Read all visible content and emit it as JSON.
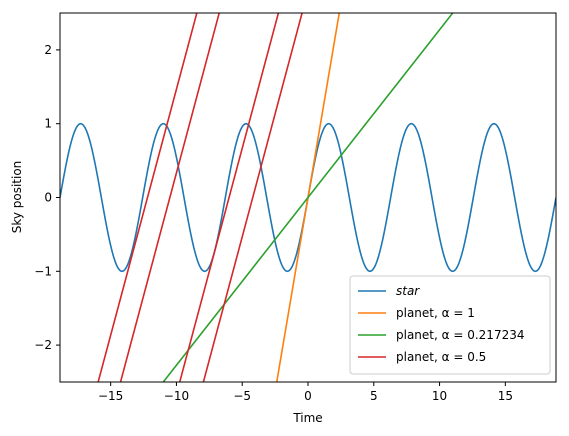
{
  "chart_data": {
    "type": "line",
    "title": "",
    "xlabel": "Time",
    "ylabel": "Sky position",
    "xlim": [
      -18.85,
      18.85
    ],
    "ylim": [
      -2.5,
      2.5
    ],
    "xticks": [
      -15,
      -10,
      -5,
      0,
      5,
      10,
      15
    ],
    "yticks": [
      -2,
      -1,
      0,
      1,
      2
    ],
    "xtick_labels": [
      "−15",
      "−10",
      "−5",
      "0",
      "5",
      "10",
      "15"
    ],
    "ytick_labels": [
      "−2",
      "−1",
      "0",
      "1",
      "2"
    ],
    "grid": false,
    "legend_position": "lower-right",
    "series": [
      {
        "name": "star",
        "kind": "sine",
        "amplitude": 1,
        "x_range": [
          -18.85,
          18.85
        ],
        "color": "#1f77b4"
      },
      {
        "name": "planet, α = 1",
        "kind": "lines",
        "slope": 1,
        "segments": [
          [
            -2.5,
            2.5
          ]
        ],
        "color": "#ff7f0e"
      },
      {
        "name": "planet, α = 0.217234",
        "kind": "lines",
        "slope": 0.217234,
        "segments": [
          [
            -2.5,
            2.5
          ]
        ],
        "color": "#2ca02c"
      },
      {
        "name": "planet, α = 0.5",
        "kind": "lines",
        "slope": 0.5,
        "segments": [
          [
            -3.1416,
            2.5
          ],
          [
            -3.1416,
            2.5
          ],
          [
            -2.5,
            2.5
          ],
          [
            -2.5,
            2.5
          ]
        ],
        "offsets_t": [
          -3.1416,
          -6.2832,
          -9.4248,
          -12.5664
        ],
        "color": "#d62728"
      }
    ]
  }
}
